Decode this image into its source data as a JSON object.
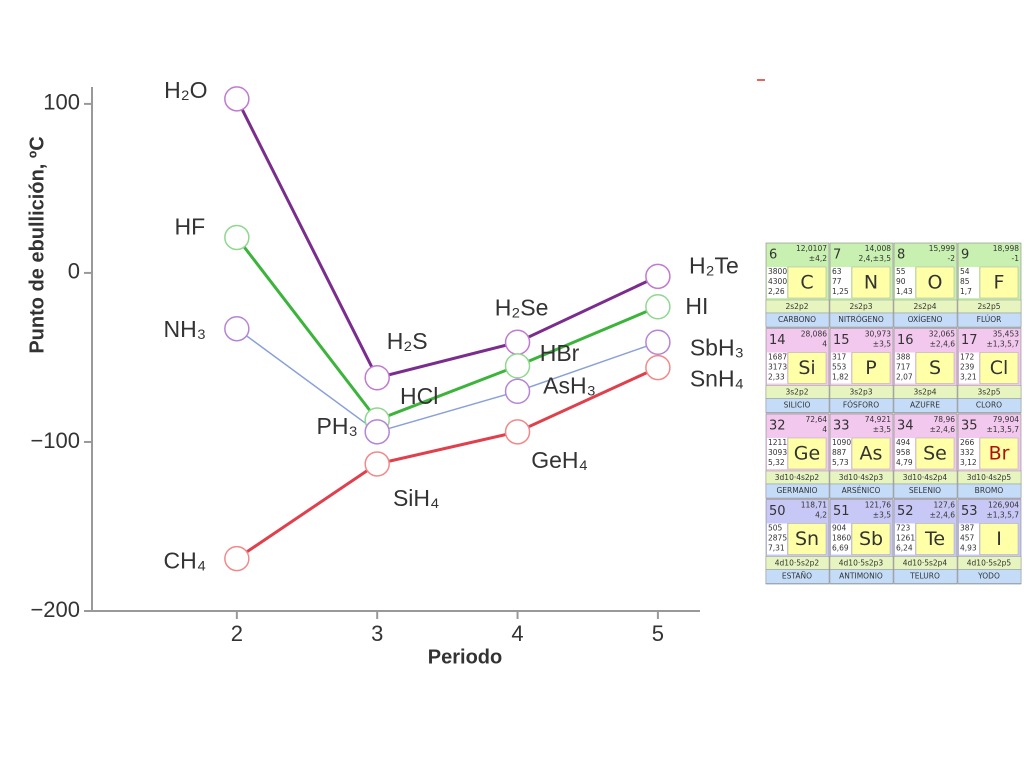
{
  "chart_data": {
    "type": "line",
    "y_label": "Punto de ebullición, ºC",
    "x_label": "Periodo",
    "x": [
      2,
      3,
      4,
      5
    ],
    "xlim": [
      1,
      5.3
    ],
    "xticks": [
      2,
      3,
      4,
      5
    ],
    "ylim": [
      -200,
      110
    ],
    "yticks": [
      {
        "value": -200,
        "label": "−200"
      },
      {
        "value": -100,
        "label": "−100"
      },
      0,
      100
    ],
    "series": [
      {
        "color": "#7b2d8e",
        "marker_color": "#c07ad0",
        "labels": [
          "H₂O",
          "H₂S",
          "H₂Se",
          "H₂Te"
        ],
        "values": [
          103,
          -62,
          -41,
          -2
        ]
      },
      {
        "color": "#3cb43c",
        "marker_color": "#90d890",
        "labels": [
          "HF",
          "HCl",
          "HBr",
          "HI"
        ],
        "values": [
          21,
          -87,
          -55,
          -20
        ]
      },
      {
        "color": "#8aa0d8",
        "marker_color": "#b585d5",
        "labels": [
          "NH₃",
          "PH₃",
          "AsH₃",
          "SbH₃"
        ],
        "values": [
          -33,
          -94,
          -70,
          -41
        ]
      },
      {
        "color": "#e0404c",
        "marker_color": "#f08a8a",
        "labels": [
          "CH₄",
          "SiH₄",
          "GeH₄",
          "SnH₄"
        ],
        "values": [
          -169,
          -113,
          -94,
          -56
        ]
      }
    ]
  },
  "periodic_table": {
    "rows": [
      [
        {
          "number": "6",
          "mass": "12,0107",
          "ox": "±4,2",
          "props": [
            "3800",
            "4300",
            "2,26"
          ],
          "symbol": "C",
          "config": "2s2p2",
          "name": "CARBONO"
        },
        {
          "number": "7",
          "mass": "14,008",
          "ox": "2,4,±3,5",
          "props": [
            "63",
            "77",
            "1,25"
          ],
          "symbol": "N",
          "config": "2s2p3",
          "name": "NITRÓGENO"
        },
        {
          "number": "8",
          "mass": "15,999",
          "ox": "-2",
          "props": [
            "55",
            "90",
            "1,43"
          ],
          "symbol": "O",
          "config": "2s2p4",
          "name": "OXÍGENO"
        },
        {
          "number": "9",
          "mass": "18,998",
          "ox": "-1",
          "props": [
            "54",
            "85",
            "1,7"
          ],
          "symbol": "F",
          "config": "2s2p5",
          "name": "FLÚOR"
        }
      ],
      [
        {
          "number": "14",
          "mass": "28,086",
          "ox": "4",
          "props": [
            "1687",
            "3173",
            "2,33"
          ],
          "symbol": "Si",
          "config": "3s2p2",
          "name": "SILICIO"
        },
        {
          "number": "15",
          "mass": "30,973",
          "ox": "±3,5",
          "props": [
            "317",
            "553",
            "1,82"
          ],
          "symbol": "P",
          "config": "3s2p3",
          "name": "FÓSFORO"
        },
        {
          "number": "16",
          "mass": "32,065",
          "ox": "±2,4,6",
          "props": [
            "388",
            "717",
            "2,07"
          ],
          "symbol": "S",
          "config": "3s2p4",
          "name": "AZUFRE"
        },
        {
          "number": "17",
          "mass": "35,453",
          "ox": "±1,3,5,7",
          "props": [
            "172",
            "239",
            "3,21"
          ],
          "symbol": "Cl",
          "config": "3s2p5",
          "name": "CLORO"
        }
      ],
      [
        {
          "number": "32",
          "mass": "72,64",
          "ox": "4",
          "props": [
            "1211",
            "3093",
            "5,32"
          ],
          "symbol": "Ge",
          "config": "3d10·4s2p2",
          "name": "GERMANIO"
        },
        {
          "number": "33",
          "mass": "74,921",
          "ox": "±3,5",
          "props": [
            "1090",
            "887",
            "5,73"
          ],
          "symbol": "As",
          "config": "3d10·4s2p3",
          "name": "ARSÉNICO"
        },
        {
          "number": "34",
          "mass": "78,96",
          "ox": "±2,4,6",
          "props": [
            "494",
            "958",
            "4,79"
          ],
          "symbol": "Se",
          "config": "3d10·4s2p4",
          "name": "SELENIO"
        },
        {
          "number": "35",
          "mass": "79,904",
          "ox": "±1,3,5,7",
          "props": [
            "266",
            "332",
            "3,12"
          ],
          "symbol": "Br",
          "config": "3d10·4s2p5",
          "name": "BROMO"
        }
      ],
      [
        {
          "number": "50",
          "mass": "118,71",
          "ox": "4,2",
          "props": [
            "505",
            "2875",
            "7,31"
          ],
          "symbol": "Sn",
          "config": "4d10·5s2p2",
          "name": "ESTAÑO"
        },
        {
          "number": "51",
          "mass": "121,76",
          "ox": "±3,5",
          "props": [
            "904",
            "1860",
            "6,69"
          ],
          "symbol": "Sb",
          "config": "4d10·5s2p3",
          "name": "ANTIMONIO"
        },
        {
          "number": "52",
          "mass": "127,6",
          "ox": "±2,4,6",
          "props": [
            "723",
            "1261",
            "6,24"
          ],
          "symbol": "Te",
          "config": "4d10·5s2p4",
          "name": "TELURO"
        },
        {
          "number": "53",
          "mass": "126,904",
          "ox": "±1,3,5,7",
          "props": [
            "387",
            "457",
            "4,93"
          ],
          "symbol": "I",
          "config": "4d10·5s2p5",
          "name": "YODO"
        }
      ]
    ]
  }
}
